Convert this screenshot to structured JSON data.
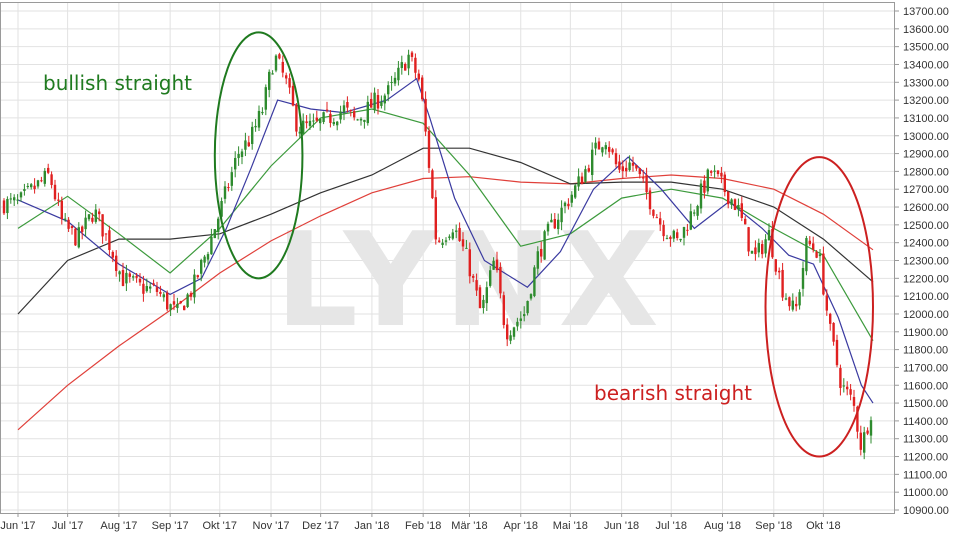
{
  "chart_data": {
    "type": "line",
    "subtype": "candlestick",
    "title": "",
    "xlabel": "",
    "ylabel": "",
    "ylim": [
      10900,
      13700
    ],
    "y_ticks": [
      10900,
      11000,
      11100,
      11200,
      11300,
      11400,
      11500,
      11600,
      11700,
      11800,
      11900,
      12000,
      12100,
      12200,
      12300,
      12400,
      12500,
      12600,
      12700,
      12800,
      12900,
      13000,
      13100,
      13200,
      13300,
      13400,
      13500,
      13600,
      13700
    ],
    "y_tick_labels": [
      "10900.00",
      "11000.00",
      "11100.00",
      "11200.00",
      "11300.00",
      "11400.00",
      "11500.00",
      "11600.00",
      "11700.00",
      "11800.00",
      "11900.00",
      "12000.00",
      "12100.00",
      "12200.00",
      "12300.00",
      "12400.00",
      "12500.00",
      "12600.00",
      "12700.00",
      "12800.00",
      "12900.00",
      "13000.00",
      "13100.00",
      "13200.00",
      "13300.00",
      "13400.00",
      "13500.00",
      "13600.00",
      "13700.00"
    ],
    "x_start": "2017-06-01",
    "x_end": "2018-10-31",
    "x_ticks": [
      {
        "label": "Jun '17",
        "date": "2017-06-01"
      },
      {
        "label": "Jul '17",
        "date": "2017-07-01"
      },
      {
        "label": "Aug '17",
        "date": "2017-08-01"
      },
      {
        "label": "Sep '17",
        "date": "2017-09-01"
      },
      {
        "label": "Okt '17",
        "date": "2017-10-01"
      },
      {
        "label": "Nov '17",
        "date": "2017-11-01"
      },
      {
        "label": "Dez '17",
        "date": "2017-12-01"
      },
      {
        "label": "Jan '18",
        "date": "2018-01-01"
      },
      {
        "label": "Feb '18",
        "date": "2018-02-01"
      },
      {
        "label": "Mär '18",
        "date": "2018-03-01"
      },
      {
        "label": "Apr '18",
        "date": "2018-04-01"
      },
      {
        "label": "Mai '18",
        "date": "2018-05-01"
      },
      {
        "label": "Jun '18",
        "date": "2018-06-01"
      },
      {
        "label": "Jul '18",
        "date": "2018-07-01"
      },
      {
        "label": "Aug '18",
        "date": "2018-08-01"
      },
      {
        "label": "Sep '18",
        "date": "2018-09-01"
      },
      {
        "label": "Okt '18",
        "date": "2018-10-01"
      }
    ],
    "grid": true,
    "series_colors": {
      "up": "#2e8b2e",
      "down": "#e02020",
      "ma_fast": "#3a3aa0",
      "ma_mid": "#3c9a3c",
      "ma_slow": "#333333",
      "ma_long": "#e0403a"
    },
    "close_path": [
      [
        "2017-06-01",
        12620
      ],
      [
        "2017-06-10",
        12700
      ],
      [
        "2017-06-20",
        12780
      ],
      [
        "2017-06-28",
        12500
      ],
      [
        "2017-07-07",
        12420
      ],
      [
        "2017-07-17",
        12580
      ],
      [
        "2017-07-26",
        12400
      ],
      [
        "2017-08-03",
        12200
      ],
      [
        "2017-08-14",
        12150
      ],
      [
        "2017-08-24",
        12130
      ],
      [
        "2017-08-31",
        12050
      ],
      [
        "2017-09-05",
        12000
      ],
      [
        "2017-09-15",
        12150
      ],
      [
        "2017-09-25",
        12400
      ],
      [
        "2017-10-02",
        12600
      ],
      [
        "2017-10-12",
        12900
      ],
      [
        "2017-10-20",
        12990
      ],
      [
        "2017-10-27",
        13150
      ],
      [
        "2017-11-03",
        13450
      ],
      [
        "2017-11-10",
        13300
      ],
      [
        "2017-11-17",
        13050
      ],
      [
        "2017-11-27",
        13050
      ],
      [
        "2017-12-06",
        13100
      ],
      [
        "2017-12-15",
        13150
      ],
      [
        "2017-12-22",
        13080
      ],
      [
        "2018-01-04",
        13200
      ],
      [
        "2018-01-12",
        13250
      ],
      [
        "2018-01-23",
        13450
      ],
      [
        "2018-01-30",
        13300
      ],
      [
        "2018-02-05",
        12800
      ],
      [
        "2018-02-09",
        12400
      ],
      [
        "2018-02-19",
        12500
      ],
      [
        "2018-02-28",
        12300
      ],
      [
        "2018-03-08",
        12000
      ],
      [
        "2018-03-16",
        12300
      ],
      [
        "2018-03-23",
        11900
      ],
      [
        "2018-04-03",
        12000
      ],
      [
        "2018-04-12",
        12350
      ],
      [
        "2018-04-20",
        12500
      ],
      [
        "2018-04-27",
        12600
      ],
      [
        "2018-05-07",
        12750
      ],
      [
        "2018-05-15",
        12900
      ],
      [
        "2018-05-22",
        13000
      ],
      [
        "2018-05-30",
        12800
      ],
      [
        "2018-06-07",
        12850
      ],
      [
        "2018-06-15",
        12700
      ],
      [
        "2018-06-25",
        12500
      ],
      [
        "2018-07-05",
        12400
      ],
      [
        "2018-07-15",
        12600
      ],
      [
        "2018-07-25",
        12800
      ],
      [
        "2018-08-02",
        12700
      ],
      [
        "2018-08-10",
        12600
      ],
      [
        "2018-08-20",
        12300
      ],
      [
        "2018-08-29",
        12450
      ],
      [
        "2018-09-06",
        12150
      ],
      [
        "2018-09-14",
        12000
      ],
      [
        "2018-09-21",
        12400
      ],
      [
        "2018-09-28",
        12350
      ],
      [
        "2018-10-05",
        11900
      ],
      [
        "2018-10-12",
        11600
      ],
      [
        "2018-10-19",
        11500
      ],
      [
        "2018-10-24",
        11250
      ],
      [
        "2018-10-31",
        11500
      ]
    ],
    "ma_fast": [
      [
        "2017-06-01",
        12640
      ],
      [
        "2017-07-01",
        12520
      ],
      [
        "2017-08-01",
        12280
      ],
      [
        "2017-09-01",
        12110
      ],
      [
        "2017-09-20",
        12200
      ],
      [
        "2017-10-05",
        12480
      ],
      [
        "2017-10-20",
        12820
      ],
      [
        "2017-11-05",
        13200
      ],
      [
        "2017-11-25",
        13150
      ],
      [
        "2017-12-15",
        13130
      ],
      [
        "2018-01-10",
        13200
      ],
      [
        "2018-01-28",
        13320
      ],
      [
        "2018-02-05",
        13100
      ],
      [
        "2018-02-20",
        12650
      ],
      [
        "2018-03-10",
        12300
      ],
      [
        "2018-04-05",
        12150
      ],
      [
        "2018-04-25",
        12350
      ],
      [
        "2018-05-15",
        12700
      ],
      [
        "2018-06-05",
        12880
      ],
      [
        "2018-06-25",
        12700
      ],
      [
        "2018-07-15",
        12480
      ],
      [
        "2018-08-05",
        12630
      ],
      [
        "2018-08-25",
        12480
      ],
      [
        "2018-09-10",
        12330
      ],
      [
        "2018-09-25",
        12280
      ],
      [
        "2018-10-10",
        11980
      ],
      [
        "2018-10-24",
        11600
      ],
      [
        "2018-10-31",
        11500
      ]
    ],
    "ma_mid": [
      [
        "2017-06-01",
        12480
      ],
      [
        "2017-07-01",
        12660
      ],
      [
        "2017-08-01",
        12450
      ],
      [
        "2017-09-01",
        12230
      ],
      [
        "2017-10-01",
        12480
      ],
      [
        "2017-11-01",
        12830
      ],
      [
        "2017-12-01",
        13100
      ],
      [
        "2018-01-01",
        13150
      ],
      [
        "2018-02-01",
        13070
      ],
      [
        "2018-03-01",
        12780
      ],
      [
        "2018-04-01",
        12380
      ],
      [
        "2018-05-01",
        12450
      ],
      [
        "2018-06-01",
        12650
      ],
      [
        "2018-07-01",
        12700
      ],
      [
        "2018-08-01",
        12650
      ],
      [
        "2018-09-01",
        12480
      ],
      [
        "2018-10-01",
        12330
      ],
      [
        "2018-10-31",
        11850
      ]
    ],
    "ma_slow": [
      [
        "2017-06-01",
        12000
      ],
      [
        "2017-07-01",
        12300
      ],
      [
        "2017-08-01",
        12420
      ],
      [
        "2017-09-01",
        12420
      ],
      [
        "2017-10-01",
        12450
      ],
      [
        "2017-11-01",
        12560
      ],
      [
        "2017-12-01",
        12680
      ],
      [
        "2018-01-01",
        12780
      ],
      [
        "2018-02-01",
        12930
      ],
      [
        "2018-03-01",
        12930
      ],
      [
        "2018-04-01",
        12850
      ],
      [
        "2018-05-01",
        12730
      ],
      [
        "2018-06-01",
        12740
      ],
      [
        "2018-07-01",
        12740
      ],
      [
        "2018-08-01",
        12700
      ],
      [
        "2018-09-01",
        12600
      ],
      [
        "2018-10-01",
        12420
      ],
      [
        "2018-10-31",
        12180
      ]
    ],
    "ma_long": [
      [
        "2017-06-01",
        11350
      ],
      [
        "2017-07-01",
        11600
      ],
      [
        "2017-08-01",
        11820
      ],
      [
        "2017-09-01",
        12020
      ],
      [
        "2017-10-01",
        12230
      ],
      [
        "2017-11-01",
        12410
      ],
      [
        "2017-12-01",
        12550
      ],
      [
        "2018-01-01",
        12680
      ],
      [
        "2018-02-01",
        12760
      ],
      [
        "2018-03-01",
        12770
      ],
      [
        "2018-04-01",
        12740
      ],
      [
        "2018-05-01",
        12730
      ],
      [
        "2018-06-01",
        12760
      ],
      [
        "2018-07-01",
        12780
      ],
      [
        "2018-08-01",
        12760
      ],
      [
        "2018-09-01",
        12700
      ],
      [
        "2018-10-01",
        12560
      ],
      [
        "2018-10-31",
        12360
      ]
    ],
    "annotations": [
      {
        "text": "bullish straight",
        "color": "#1f7a1f"
      },
      {
        "text": "bearish straight",
        "color": "#cc2020"
      }
    ],
    "highlight_regions": [
      {
        "color": "#1f7a1f",
        "x_from": "2017-09-28",
        "x_to": "2017-11-20",
        "y_from": 12200,
        "y_to": 13580
      },
      {
        "color": "#cc2020",
        "x_from": "2018-08-27",
        "x_to": "2018-10-31",
        "y_from": 11200,
        "y_to": 12880
      }
    ],
    "watermark": "LYNX"
  }
}
